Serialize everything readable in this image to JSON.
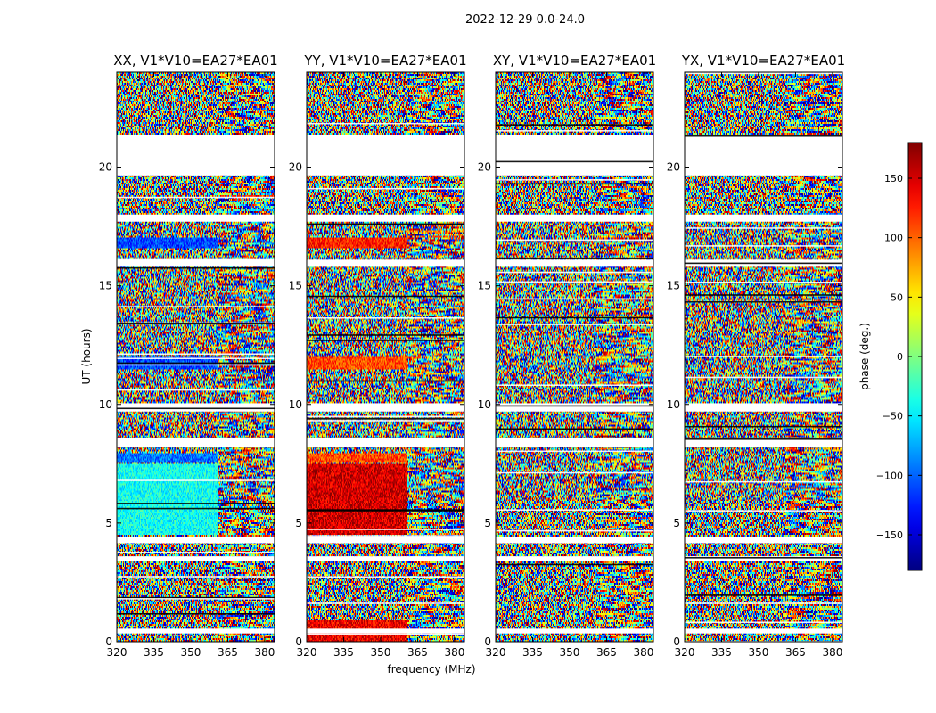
{
  "suptitle": "2022-12-29 0.0-24.0",
  "chart_data": {
    "type": "heatmap",
    "title": "2022-12-29 0.0-24.0",
    "xlabel": "frequency (MHz)",
    "ylabel": "UT (hours)",
    "xlim": [
      320,
      384
    ],
    "ylim": [
      0,
      24
    ],
    "xticks": [
      320,
      335,
      350,
      365,
      380
    ],
    "yticks": [
      0,
      5,
      10,
      15,
      20
    ],
    "panels": [
      {
        "title": "XX, V1*V10=EA27*EA01",
        "polarization": "XX"
      },
      {
        "title": "YY, V1*V10=EA27*EA01",
        "polarization": "YY"
      },
      {
        "title": "XY, V1*V10=EA27*EA01",
        "polarization": "XY"
      },
      {
        "title": "YX, V1*V10=EA27*EA01",
        "polarization": "YX"
      }
    ],
    "colorbar": {
      "label": "phase (deg.)",
      "range": [
        -180,
        180
      ],
      "ticks": [
        150,
        100,
        50,
        0,
        -50,
        -100,
        -150
      ],
      "colormap": "jet"
    },
    "gaps_ut": [
      [
        21.35,
        19.65
      ],
      [
        18.0,
        17.7
      ],
      [
        16.1,
        15.8
      ],
      [
        10.05,
        9.7
      ],
      [
        8.6,
        8.2
      ],
      [
        4.4,
        4.15
      ],
      [
        3.6,
        3.4
      ],
      [
        0.55,
        0.35
      ]
    ],
    "coherent_bands": [
      {
        "panel": 0,
        "ut": [
          11.5,
          12.0
        ],
        "freq": [
          320,
          361
        ],
        "phase": -110
      },
      {
        "panel": 0,
        "ut": [
          7.6,
          7.95
        ],
        "freq": [
          320,
          361
        ],
        "phase": -95
      },
      {
        "panel": 0,
        "ut": [
          4.5,
          7.5
        ],
        "freq": [
          320,
          361
        ],
        "phase": -40
      },
      {
        "panel": 0,
        "ut": [
          16.6,
          17.0
        ],
        "freq": [
          320,
          361
        ],
        "phase": -110
      },
      {
        "panel": 1,
        "ut": [
          11.5,
          12.0
        ],
        "freq": [
          320,
          361
        ],
        "phase": 110
      },
      {
        "panel": 1,
        "ut": [
          7.6,
          7.95
        ],
        "freq": [
          320,
          361
        ],
        "phase": 110
      },
      {
        "panel": 1,
        "ut": [
          4.5,
          7.5
        ],
        "freq": [
          320,
          361
        ],
        "phase": 150
      },
      {
        "panel": 1,
        "ut": [
          16.6,
          17.0
        ],
        "freq": [
          320,
          361
        ],
        "phase": 125
      },
      {
        "panel": 1,
        "ut": [
          0.0,
          0.9
        ],
        "freq": [
          320,
          361
        ],
        "phase": 140
      }
    ]
  }
}
